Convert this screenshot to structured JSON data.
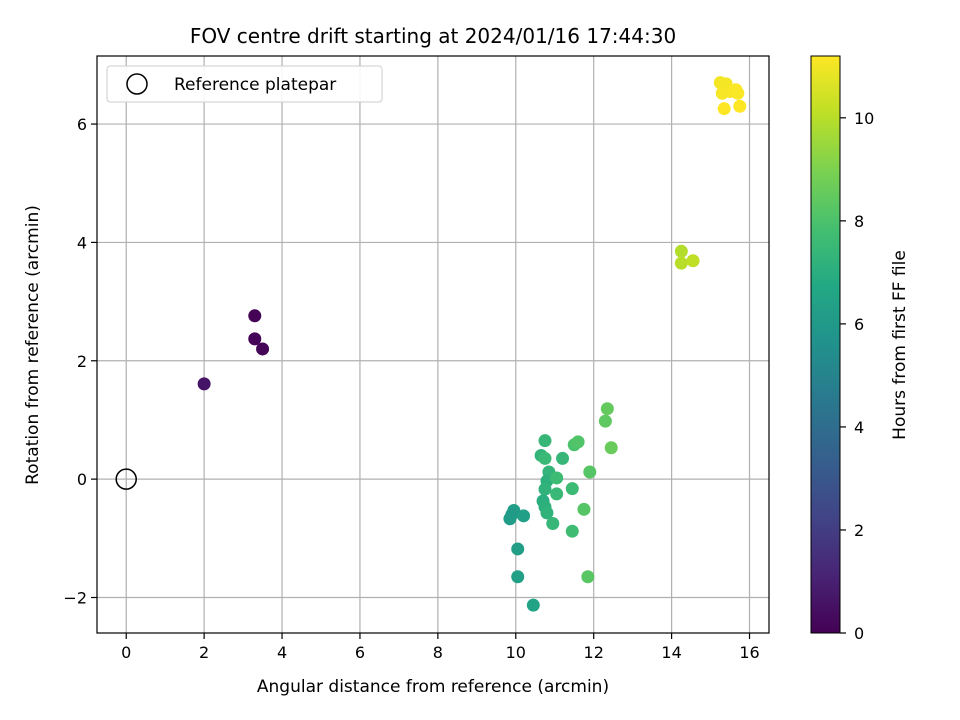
{
  "chart_data": {
    "type": "scatter",
    "title": "FOV centre drift starting at 2024/01/16 17:44:30",
    "xlabel": "Angular distance from reference (arcmin)",
    "ylabel": "Rotation from reference (arcmin)",
    "xlim": [
      -0.75,
      16.5
    ],
    "ylim": [
      -2.6,
      7.15
    ],
    "xticks": [
      0,
      2,
      4,
      6,
      8,
      10,
      12,
      14,
      16
    ],
    "yticks": [
      -2,
      0,
      2,
      4,
      6
    ],
    "grid": true,
    "legend": {
      "position": "top-left",
      "entries": [
        "Reference platepar"
      ]
    },
    "reference_point": {
      "x": 0,
      "y": 0,
      "label": "Reference platepar"
    },
    "colorbar": {
      "label": "Hours from first FF file",
      "colormap": "viridis",
      "min": 0,
      "max": 11.2,
      "ticks": [
        0,
        2,
        4,
        6,
        8,
        10
      ]
    },
    "points": [
      {
        "x": 3.3,
        "y": 2.76,
        "c": 0.05
      },
      {
        "x": 3.3,
        "y": 2.37,
        "c": 0.1
      },
      {
        "x": 3.5,
        "y": 2.2,
        "c": 0.15
      },
      {
        "x": 2.0,
        "y": 1.61,
        "c": 0.6
      },
      {
        "x": 9.95,
        "y": -0.53,
        "c": 6.2
      },
      {
        "x": 9.9,
        "y": -0.6,
        "c": 6.1
      },
      {
        "x": 9.85,
        "y": -0.67,
        "c": 6.15
      },
      {
        "x": 10.2,
        "y": -0.62,
        "c": 6.3
      },
      {
        "x": 10.05,
        "y": -1.18,
        "c": 6.25
      },
      {
        "x": 10.05,
        "y": -1.65,
        "c": 6.35
      },
      {
        "x": 10.45,
        "y": -2.13,
        "c": 6.5
      },
      {
        "x": 10.65,
        "y": 0.4,
        "c": 7.3
      },
      {
        "x": 10.75,
        "y": 0.65,
        "c": 7.4
      },
      {
        "x": 10.75,
        "y": 0.35,
        "c": 7.5
      },
      {
        "x": 10.85,
        "y": 0.12,
        "c": 7.3
      },
      {
        "x": 10.8,
        "y": -0.03,
        "c": 7.1
      },
      {
        "x": 10.75,
        "y": -0.17,
        "c": 7.2
      },
      {
        "x": 10.7,
        "y": -0.37,
        "c": 7.0
      },
      {
        "x": 10.75,
        "y": -0.47,
        "c": 7.1
      },
      {
        "x": 10.8,
        "y": -0.57,
        "c": 7.2
      },
      {
        "x": 10.95,
        "y": -0.75,
        "c": 7.4
      },
      {
        "x": 11.05,
        "y": 0.02,
        "c": 7.6
      },
      {
        "x": 11.05,
        "y": -0.25,
        "c": 7.5
      },
      {
        "x": 11.2,
        "y": 0.35,
        "c": 7.4
      },
      {
        "x": 11.45,
        "y": -0.16,
        "c": 7.6
      },
      {
        "x": 11.45,
        "y": -0.88,
        "c": 7.7
      },
      {
        "x": 11.5,
        "y": 0.58,
        "c": 8.0
      },
      {
        "x": 11.6,
        "y": 0.63,
        "c": 8.1
      },
      {
        "x": 11.75,
        "y": -0.51,
        "c": 8.2
      },
      {
        "x": 11.85,
        "y": -1.65,
        "c": 8.3
      },
      {
        "x": 11.9,
        "y": 0.12,
        "c": 8.2
      },
      {
        "x": 12.3,
        "y": 0.98,
        "c": 8.4
      },
      {
        "x": 12.35,
        "y": 1.19,
        "c": 8.5
      },
      {
        "x": 12.45,
        "y": 0.53,
        "c": 8.6
      },
      {
        "x": 14.25,
        "y": 3.85,
        "c": 9.9
      },
      {
        "x": 14.25,
        "y": 3.65,
        "c": 10.0
      },
      {
        "x": 14.55,
        "y": 3.69,
        "c": 10.1
      },
      {
        "x": 15.25,
        "y": 6.7,
        "c": 11.0
      },
      {
        "x": 15.4,
        "y": 6.68,
        "c": 11.05
      },
      {
        "x": 15.3,
        "y": 6.52,
        "c": 11.1
      },
      {
        "x": 15.5,
        "y": 6.55,
        "c": 11.1
      },
      {
        "x": 15.65,
        "y": 6.58,
        "c": 11.15
      },
      {
        "x": 15.7,
        "y": 6.52,
        "c": 11.15
      },
      {
        "x": 15.35,
        "y": 6.26,
        "c": 11.2
      },
      {
        "x": 15.75,
        "y": 6.3,
        "c": 11.2
      }
    ]
  }
}
